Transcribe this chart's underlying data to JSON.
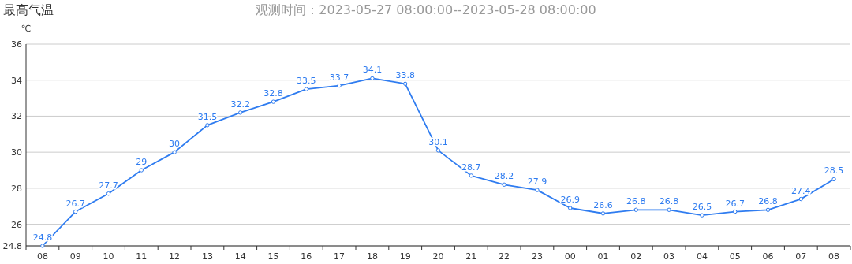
{
  "chart_data": {
    "type": "line",
    "title": "最高气温",
    "subtitle": "观测时间：2023-05-27 08:00:00--2023-05-28 08:00:00",
    "ylabel": "℃",
    "categories": [
      "08",
      "09",
      "10",
      "11",
      "12",
      "13",
      "14",
      "15",
      "16",
      "17",
      "18",
      "19",
      "20",
      "21",
      "22",
      "23",
      "00",
      "01",
      "02",
      "03",
      "04",
      "05",
      "06",
      "07",
      "08"
    ],
    "series": [
      {
        "color": "#2f7cf0",
        "values": [
          24.8,
          26.7,
          27.7,
          29,
          30,
          31.5,
          32.2,
          32.8,
          33.5,
          33.7,
          34.1,
          33.8,
          30.1,
          28.7,
          28.2,
          27.9,
          26.9,
          26.6,
          26.8,
          26.8,
          26.5,
          26.7,
          26.8,
          27.4,
          28.5
        ]
      }
    ],
    "ylim": [
      24.8,
      36
    ],
    "yticks": [
      24.8,
      26,
      28,
      30,
      32,
      34,
      36
    ],
    "grid": "y",
    "marker": "circle",
    "line_style": "solid",
    "data_labels": true
  }
}
